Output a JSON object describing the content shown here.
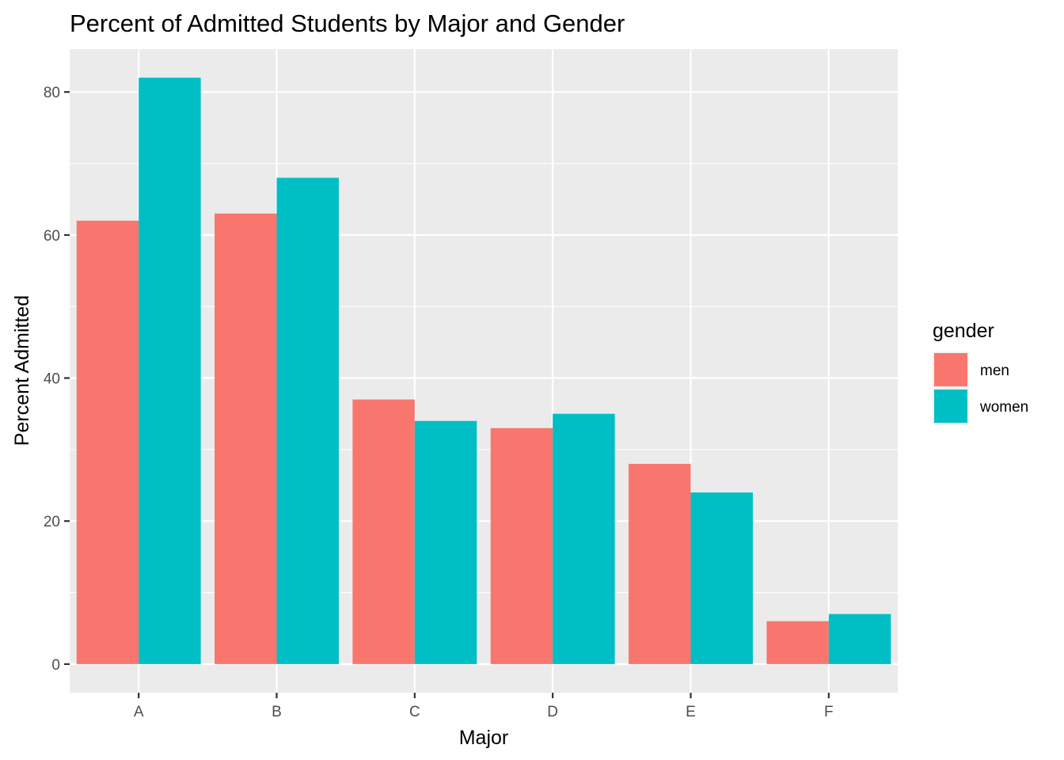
{
  "chart_data": {
    "type": "bar",
    "title": "Percent of Admitted Students by Major and Gender",
    "xlabel": "Major",
    "ylabel": "Percent Admitted",
    "categories": [
      "A",
      "B",
      "C",
      "D",
      "E",
      "F"
    ],
    "series": [
      {
        "name": "men",
        "color": "#F8766D",
        "values": [
          62,
          63,
          37,
          33,
          28,
          6
        ]
      },
      {
        "name": "women",
        "color": "#00BFC4",
        "values": [
          82,
          68,
          34,
          35,
          24,
          7
        ]
      }
    ],
    "ylim": [
      -4,
      86
    ],
    "yticks": [
      0,
      20,
      40,
      60,
      80
    ],
    "grid": true,
    "legend": {
      "title": "gender",
      "position": "right"
    }
  }
}
